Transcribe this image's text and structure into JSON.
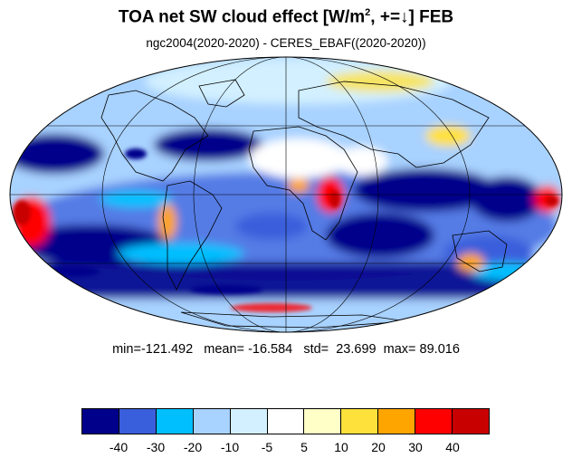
{
  "title": {
    "main": "TOA net SW cloud effect [W/m",
    "superscript": "2",
    "tail": ", +=↓]  FEB"
  },
  "subtitle": "ngc2004(2020-2020) - CERES_EBAF((2020-2020))",
  "stats": {
    "min_label": "min=",
    "min": "-121.492",
    "mean_label": "mean=",
    "mean": "-16.584",
    "std_label": "std=",
    "std": "23.699",
    "max_label": "max=",
    "max": "89.016"
  },
  "colorbar": {
    "colors": [
      "#00008b",
      "#3a5fdc",
      "#00bfff",
      "#a8d2ff",
      "#d2f0ff",
      "#ffffff",
      "#ffffc8",
      "#ffe13c",
      "#ffa500",
      "#ff0000",
      "#c80000"
    ],
    "tick_labels": [
      "-40",
      "-30",
      "-20",
      "-10",
      "-5",
      "5",
      "10",
      "20",
      "30",
      "40"
    ]
  },
  "map": {
    "projection": "mollweide",
    "gridlines": true,
    "coastlines": true
  }
}
